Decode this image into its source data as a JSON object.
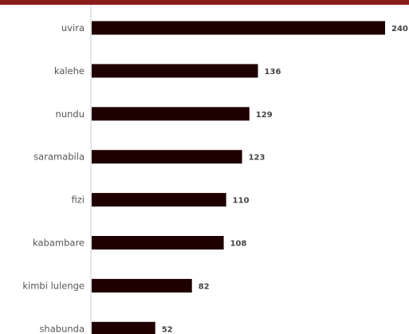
{
  "colors": {
    "top_bar": "#8b1c1c",
    "bar": "#1f0000",
    "axis": "#cccccc"
  },
  "chart_data": {
    "type": "bar",
    "orientation": "horizontal",
    "categories": [
      "uvira",
      "kalehe",
      "nundu",
      "saramabila",
      "fizi",
      "kabambare",
      "kimbi lulenge",
      "shabunda"
    ],
    "values": [
      240,
      136,
      129,
      123,
      110,
      108,
      82,
      52
    ],
    "title": "",
    "xlabel": "",
    "ylabel": "",
    "xlim": [
      0,
      240
    ],
    "grid": false,
    "data_labels": true
  }
}
